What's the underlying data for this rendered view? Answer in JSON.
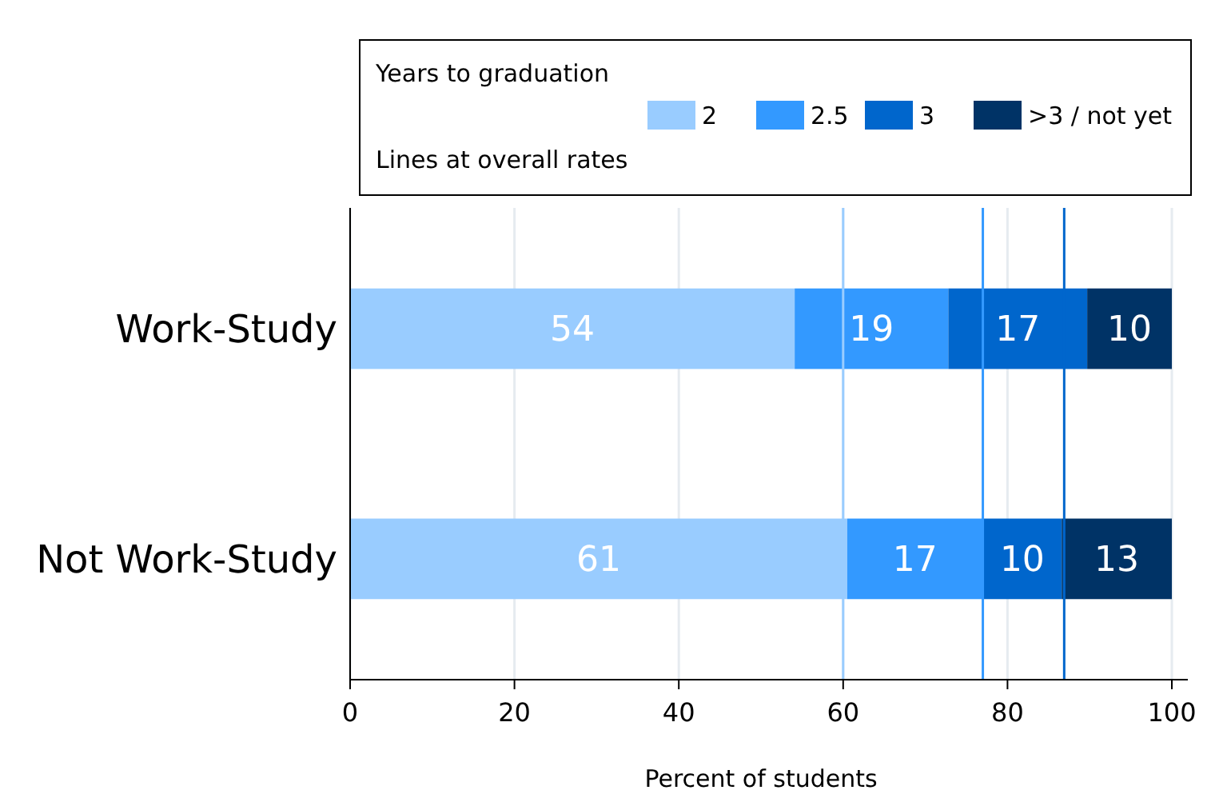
{
  "chart_data": {
    "type": "bar",
    "orientation": "horizontal",
    "stacked": true,
    "categories": [
      "Work-Study",
      "Not Work-Study"
    ],
    "xlabel": "Percent of students",
    "legend_title": "Years to graduation",
    "annotations": [
      "Lines at overall rates"
    ],
    "xlim": [
      0,
      100
    ],
    "xticks": [
      0,
      20,
      40,
      60,
      80,
      100
    ],
    "grid": "x",
    "legend": "top",
    "series": [
      {
        "name": "2",
        "color": "#99ccff",
        "values": [
          54.1,
          60.5
        ],
        "value_labels": [
          "54",
          "61"
        ]
      },
      {
        "name": "2.5",
        "color": "#3399ff",
        "values": [
          18.7,
          16.5
        ],
        "value_labels": [
          "19",
          "17"
        ]
      },
      {
        "name": "3",
        "color": "#0066cc",
        "values": [
          16.9,
          9.6
        ],
        "value_labels": [
          "17",
          "10"
        ]
      },
      {
        "name": ">3 / not yet",
        "color": "#003366",
        "values": [
          10.3,
          13.4
        ],
        "value_labels": [
          "10",
          "13"
        ]
      }
    ],
    "ref_lines": [
      {
        "axis": "x",
        "value": 60,
        "color": "#99ccff"
      },
      {
        "axis": "x",
        "value": 77,
        "color": "#3399ff"
      },
      {
        "axis": "x",
        "value": 86.9,
        "color": "#0066cc"
      }
    ]
  }
}
